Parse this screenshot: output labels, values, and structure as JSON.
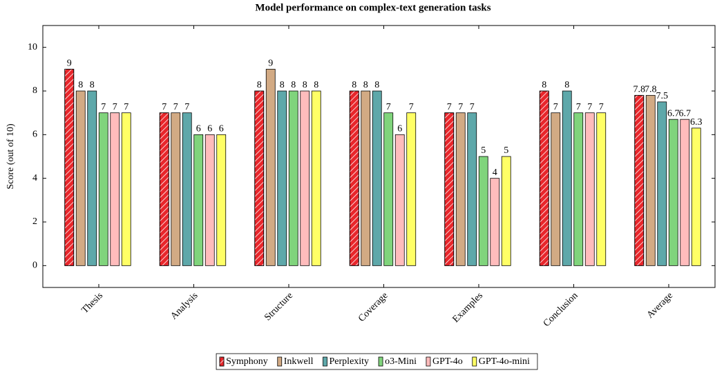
{
  "chart_data": {
    "type": "bar",
    "title": "Model performance on complex-text generation tasks",
    "y_label": "Score (out of 10)",
    "categories": [
      "Thesis",
      "Analysis",
      "Structure",
      "Coverage",
      "Examples",
      "Conclusion",
      "Average"
    ],
    "series": [
      {
        "name": "Symphony",
        "color": "#e8262b",
        "hatch": true,
        "values": [
          9,
          7,
          8,
          8,
          7,
          8,
          7.8
        ]
      },
      {
        "name": "Inkwell",
        "color": "#d2aa84",
        "values": [
          8,
          7,
          9,
          8,
          7,
          7,
          7.8
        ]
      },
      {
        "name": "Perplexity",
        "color": "#5ea8aa",
        "values": [
          8,
          7,
          8,
          8,
          7,
          8,
          7.5
        ]
      },
      {
        "name": "o3-Mini",
        "color": "#80d47c",
        "values": [
          7,
          6,
          8,
          7,
          5,
          7,
          6.7
        ]
      },
      {
        "name": "GPT-4o",
        "color": "#ffbcbc",
        "values": [
          7,
          6,
          8,
          6,
          4,
          7,
          6.7
        ]
      },
      {
        "name": "GPT-4o-mini",
        "color": "#ffff66",
        "values": [
          7,
          6,
          8,
          7,
          5,
          7,
          6.3
        ]
      }
    ],
    "ylim": [
      -1,
      11
    ],
    "yticks": [
      0,
      2,
      4,
      6,
      8,
      10
    ],
    "grid": false,
    "legend_position": "bottom"
  }
}
